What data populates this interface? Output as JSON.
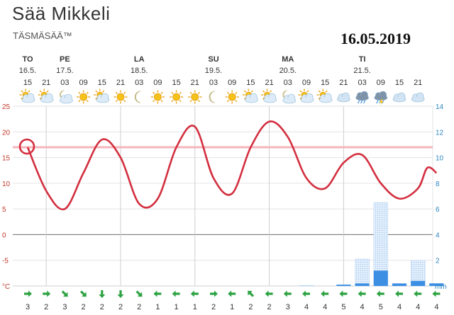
{
  "header": {
    "title": "Sää Mikkeli",
    "subtitle": "TÄSMÄSÄÄ™",
    "date_stamp": "16.05.2019"
  },
  "colors": {
    "temperature_line": "#d32f3f",
    "reference_line": "#f4b6bd",
    "precip_solid": "#3d8fe3",
    "precip_dotted": "#a9cdf3",
    "wind_arrow": "#2ea343",
    "right_axis": "#2e86c1",
    "left_axis": "#c0392b"
  },
  "chart_data": {
    "type": "line",
    "days": [
      {
        "name": "TO",
        "date": "16.5.",
        "slot": 0
      },
      {
        "name": "PE",
        "date": "17.5.",
        "slot": 2
      },
      {
        "name": "LA",
        "date": "18.5.",
        "slot": 6
      },
      {
        "name": "SU",
        "date": "19.5.",
        "slot": 10
      },
      {
        "name": "MA",
        "date": "20.5.",
        "slot": 14
      },
      {
        "name": "TI",
        "date": "21.5.",
        "slot": 18
      }
    ],
    "hours": [
      "15",
      "21",
      "03",
      "09",
      "15",
      "21",
      "03",
      "09",
      "15",
      "21",
      "03",
      "09",
      "15",
      "21",
      "03",
      "09",
      "15",
      "21",
      "03",
      "09",
      "15",
      "21"
    ],
    "icons": [
      "partly-cloudy-icon",
      "partly-cloudy-icon",
      "cloudy-night-icon",
      "sun-icon",
      "partly-cloudy-icon",
      "sun-icon",
      "moon-icon",
      "sun-icon",
      "sun-icon",
      "sun-icon",
      "moon-icon",
      "sun-icon",
      "partly-cloudy-icon",
      "partly-cloudy-icon",
      "cloudy-night-icon",
      "partly-cloudy-icon",
      "partly-cloudy-icon",
      "cloud-icon",
      "rain-cloud-icon",
      "thunder-cloud-icon",
      "cloud-icon",
      "cloud-icon"
    ],
    "temperature": [
      17,
      8.5,
      5,
      12,
      18.5,
      15,
      6,
      7,
      17,
      21,
      11,
      8,
      17,
      22,
      19,
      11,
      9,
      14,
      15.5,
      10,
      7,
      9,
      13,
      12
    ],
    "temperature_x": [
      0,
      1,
      2,
      3,
      4,
      5,
      6,
      7,
      8,
      9,
      10,
      11,
      12,
      13,
      14,
      15,
      16,
      17,
      18,
      19,
      20,
      21,
      21.5,
      22
    ],
    "reference_temperature": 17,
    "left_axis": {
      "unit": "°C",
      "ticks": [
        25,
        20,
        15,
        10,
        5,
        0,
        -5
      ],
      "range": [
        -10,
        25
      ]
    },
    "right_axis": {
      "unit": "mm",
      "ticks": [
        14,
        12,
        10,
        8,
        6,
        4,
        2
      ],
      "range": [
        0,
        14
      ]
    },
    "precip_solid": [
      0,
      0,
      0,
      0,
      0,
      0,
      0,
      0,
      0,
      0,
      0,
      0,
      0,
      0,
      0,
      0,
      0,
      0.1,
      0.2,
      1.2,
      0.2,
      0.4,
      0.2
    ],
    "precip_dotted": [
      0,
      0,
      0,
      0,
      0,
      0,
      0,
      0,
      0,
      0,
      0,
      0,
      0,
      0,
      0,
      0.05,
      0,
      0.1,
      2.1,
      6.5,
      0.1,
      2.0,
      0.2
    ],
    "precip_x": [
      0,
      1,
      2,
      3,
      4,
      5,
      6,
      7,
      8,
      9,
      10,
      11,
      12,
      13,
      14,
      15,
      16,
      17,
      18,
      19,
      20,
      21,
      22
    ],
    "wind_speed": [
      "3",
      "2",
      "3",
      "2",
      "2",
      "2",
      "2",
      "1",
      "1",
      "1",
      "2",
      "1",
      "2",
      "2",
      "3",
      "4",
      "4",
      "5",
      "4",
      "5",
      "4",
      "4",
      "4"
    ],
    "wind_direction": [
      "east",
      "east",
      "south-east",
      "south-east",
      "south",
      "south",
      "south-east",
      "west",
      "west",
      "west",
      "east",
      "west",
      "north-west",
      "west",
      "west",
      "west",
      "west",
      "west",
      "west",
      "west",
      "west",
      "west",
      "west"
    ]
  }
}
